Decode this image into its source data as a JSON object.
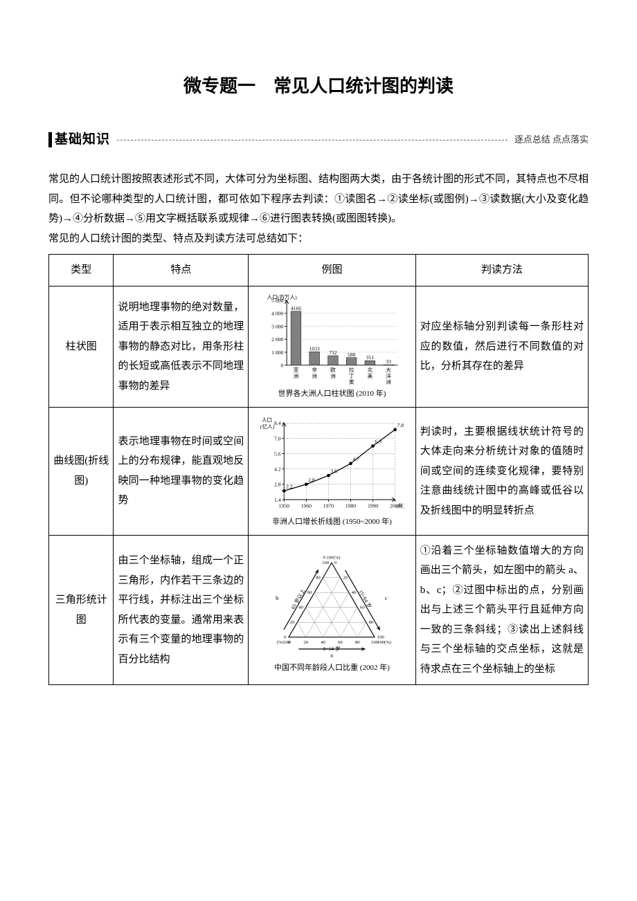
{
  "title": "微专题一　常见人口统计图的判读",
  "section": {
    "label": "基础知识",
    "tagline": "逐点总结  点点落实"
  },
  "intro": {
    "p1": "常见的人口统计图按照表述形式不同，大体可分为坐标图、结构图两大类，由于各统计图的形式不同，其特点也不尽相同。但不论哪种类型的人口统计图，都可依如下程序去判读：①读图名→②读坐标(或图例)→③读数据(大小及变化趋势)→④分析数据→⑤用文字概括联系或规律→⑥进行图表转换(或图图转换)。",
    "p2": "常见的人口统计图的类型、特点及判读方法可总结如下："
  },
  "headers": [
    "类型",
    "特点",
    "例图",
    "判读方法"
  ],
  "rows": [
    {
      "type": "柱状图",
      "feature": "说明地理事物的绝对数量，适用于表示相互独立的地理事物的静态对比，用条形柱的长短或高低表示不同地理事物的差异",
      "method": "对应坐标轴分别判读每一条形柱对应的数值，然后进行不同数值的对比，分析其存在的差异"
    },
    {
      "type": "曲线图(折线图)",
      "feature": "表示地理事物在时间或空间上的分布规律，能直观地反映同一种地理事物的变化趋势",
      "method": "判读时，主要根据线状统计符号的大体走向来分析统计对象的值随时间或空间的连续变化规律，要特别注意曲线统计图中的高峰或低谷以及折线图中的明显转折点"
    },
    {
      "type": "三角形统计图",
      "feature": "由三个坐标轴，组成一个正三角形，内作若干三条边的平行线，并标注出三个坐标所代表的变量。通常用来表示有三个变量的地理事物的百分比结构",
      "method": "①沿着三个坐标轴数值增大的方向画出三个箭头，如左图中的箭头 a、b、c；②过图中标出的点，分别画出与上述三个箭头平行且延伸方向一致的三条斜线；③读出上述斜线与三个坐标轴的交点坐标，这就是待求点在三个坐标轴上的坐标"
    }
  ],
  "barChart": {
    "type": "bar",
    "ylabel": "人口(百万人)",
    "categories": [
      "亚洲",
      "非洲",
      "欧洲",
      "拉丁美洲",
      "北美",
      "大洋洲"
    ],
    "values": [
      4166,
      1033,
      732,
      588,
      351,
      33
    ],
    "ylim": [
      0,
      5000
    ],
    "yticks": [
      0,
      1000,
      2000,
      3000,
      4000,
      5000
    ],
    "bar_color": "#808080",
    "axis_color": "#000000",
    "tick_fontsize": 8,
    "caption": "世界各大洲人口柱状图 (2010 年)"
  },
  "lineChart": {
    "type": "line",
    "ylabel": "人口\n(亿人)",
    "years": [
      1950,
      1960,
      1970,
      1980,
      1990,
      2000
    ],
    "values": [
      2.2,
      2.8,
      3.6,
      4.7,
      6.3,
      7.8
    ],
    "ylim": [
      1.4,
      8.4
    ],
    "yticks": [
      1.4,
      2.8,
      4.2,
      5.6,
      7.0,
      8.4
    ],
    "line_color": "#000000",
    "marker": "circle",
    "marker_fill": "#000000",
    "grid_color": "#666666",
    "caption": "非洲人口增长折线图 (1950~2000 年)",
    "xlabel_suffix": "(年)"
  },
  "triangleChart": {
    "type": "ternary",
    "axis_labels": {
      "a": "0~14 岁",
      "b": "65 岁以上",
      "c": "15~64 岁"
    },
    "tick_values": [
      0,
      20,
      40,
      60,
      80,
      100
    ],
    "unit": "(%)",
    "arrow_labels": [
      "a",
      "b",
      "c"
    ],
    "axis_color": "#000000",
    "grid_color": "#888888",
    "caption": "中国不同年龄段人口比重 (2002 年)"
  }
}
